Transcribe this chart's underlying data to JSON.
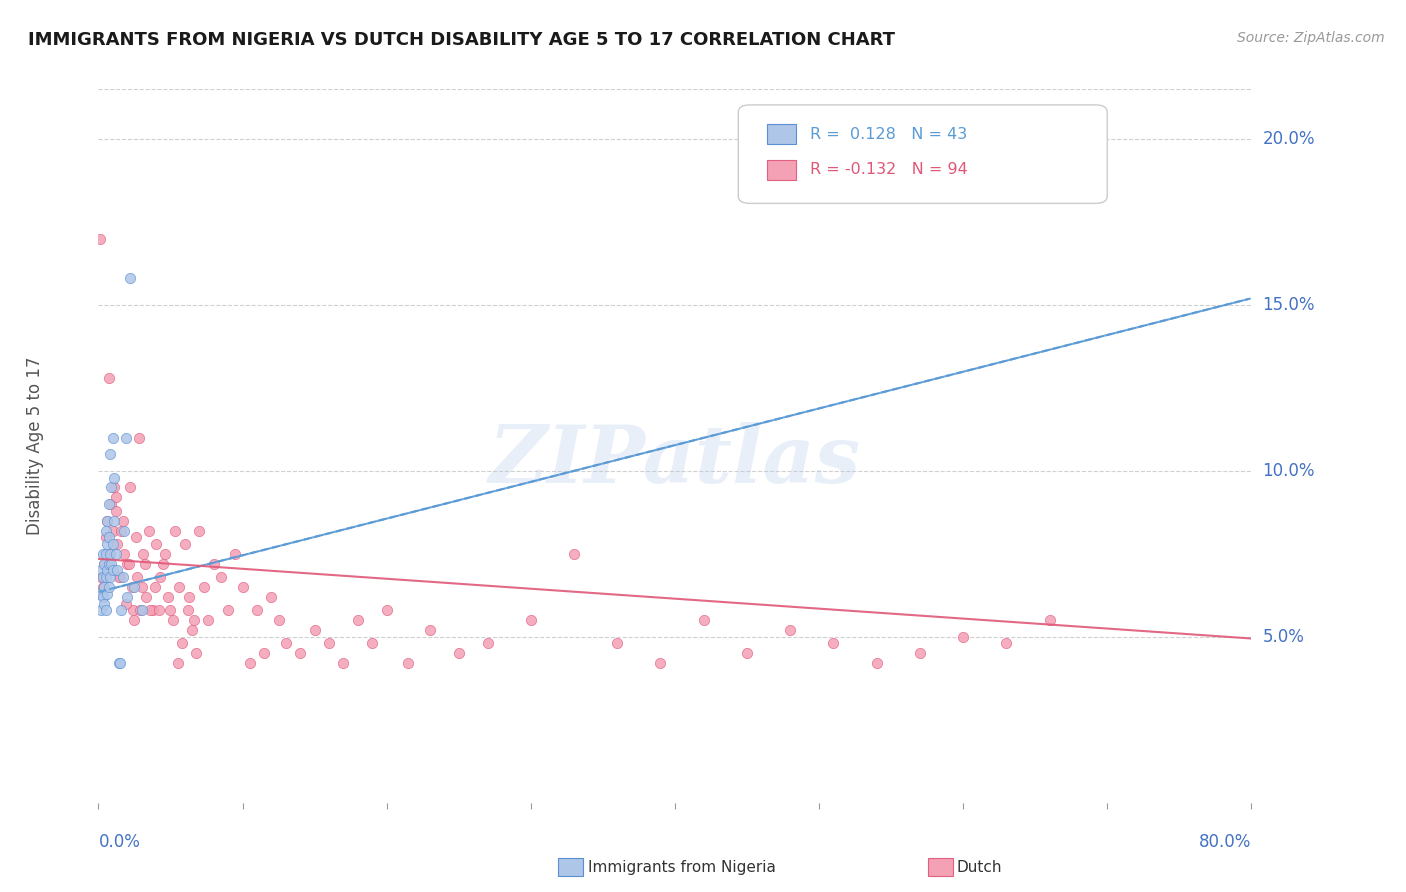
{
  "title": "IMMIGRANTS FROM NIGERIA VS DUTCH DISABILITY AGE 5 TO 17 CORRELATION CHART",
  "source": "Source: ZipAtlas.com",
  "ylabel": "Disability Age 5 to 17",
  "xmin": 0.0,
  "xmax": 0.8,
  "ymin": 0.0,
  "ymax": 0.215,
  "yticks": [
    0.05,
    0.1,
    0.15,
    0.2
  ],
  "ytick_labels": [
    "5.0%",
    "10.0%",
    "15.0%",
    "20.0%"
  ],
  "watermark_text": "ZIPatlas",
  "title_color": "#1a1a1a",
  "source_color": "#999999",
  "ylabel_color": "#555555",
  "tick_color": "#4472c4",
  "blue_scatter_color": "#aec6e8",
  "pink_scatter_color": "#f4a0b5",
  "blue_edge_color": "#5b8fd4",
  "pink_edge_color": "#e06080",
  "blue_line_color": "#5b9bd5",
  "pink_line_color": "#e05878",
  "grid_color": "#d0d0d0",
  "blue_points_x": [
    0.001,
    0.002,
    0.002,
    0.003,
    0.003,
    0.003,
    0.004,
    0.004,
    0.004,
    0.005,
    0.005,
    0.005,
    0.005,
    0.006,
    0.006,
    0.006,
    0.006,
    0.007,
    0.007,
    0.007,
    0.007,
    0.008,
    0.008,
    0.008,
    0.009,
    0.009,
    0.01,
    0.01,
    0.01,
    0.011,
    0.011,
    0.012,
    0.013,
    0.014,
    0.015,
    0.016,
    0.017,
    0.018,
    0.019,
    0.02,
    0.022,
    0.025,
    0.03
  ],
  "blue_points_y": [
    0.063,
    0.058,
    0.07,
    0.062,
    0.068,
    0.075,
    0.06,
    0.065,
    0.072,
    0.058,
    0.068,
    0.075,
    0.082,
    0.063,
    0.07,
    0.078,
    0.085,
    0.065,
    0.072,
    0.08,
    0.09,
    0.068,
    0.075,
    0.105,
    0.072,
    0.095,
    0.07,
    0.078,
    0.11,
    0.085,
    0.098,
    0.075,
    0.07,
    0.042,
    0.042,
    0.058,
    0.068,
    0.082,
    0.11,
    0.062,
    0.158,
    0.065,
    0.058
  ],
  "pink_points_x": [
    0.001,
    0.002,
    0.003,
    0.004,
    0.005,
    0.006,
    0.007,
    0.008,
    0.009,
    0.01,
    0.011,
    0.012,
    0.013,
    0.015,
    0.016,
    0.018,
    0.02,
    0.022,
    0.024,
    0.026,
    0.028,
    0.03,
    0.032,
    0.035,
    0.038,
    0.04,
    0.043,
    0.046,
    0.05,
    0.053,
    0.056,
    0.06,
    0.063,
    0.066,
    0.07,
    0.073,
    0.076,
    0.08,
    0.085,
    0.09,
    0.095,
    0.1,
    0.105,
    0.11,
    0.115,
    0.12,
    0.125,
    0.13,
    0.14,
    0.15,
    0.16,
    0.17,
    0.18,
    0.19,
    0.2,
    0.215,
    0.23,
    0.25,
    0.27,
    0.3,
    0.33,
    0.36,
    0.39,
    0.42,
    0.45,
    0.48,
    0.51,
    0.54,
    0.57,
    0.6,
    0.63,
    0.66,
    0.012,
    0.014,
    0.017,
    0.019,
    0.021,
    0.023,
    0.025,
    0.027,
    0.029,
    0.031,
    0.033,
    0.036,
    0.039,
    0.042,
    0.045,
    0.048,
    0.052,
    0.055,
    0.058,
    0.062,
    0.065,
    0.068
  ],
  "pink_points_y": [
    0.17,
    0.068,
    0.065,
    0.072,
    0.08,
    0.085,
    0.128,
    0.075,
    0.09,
    0.082,
    0.095,
    0.088,
    0.078,
    0.068,
    0.082,
    0.075,
    0.072,
    0.095,
    0.058,
    0.08,
    0.11,
    0.065,
    0.072,
    0.082,
    0.058,
    0.078,
    0.068,
    0.075,
    0.058,
    0.082,
    0.065,
    0.078,
    0.062,
    0.055,
    0.082,
    0.065,
    0.055,
    0.072,
    0.068,
    0.058,
    0.075,
    0.065,
    0.042,
    0.058,
    0.045,
    0.062,
    0.055,
    0.048,
    0.045,
    0.052,
    0.048,
    0.042,
    0.055,
    0.048,
    0.058,
    0.042,
    0.052,
    0.045,
    0.048,
    0.055,
    0.075,
    0.048,
    0.042,
    0.055,
    0.045,
    0.052,
    0.048,
    0.042,
    0.045,
    0.05,
    0.048,
    0.055,
    0.092,
    0.068,
    0.085,
    0.06,
    0.072,
    0.065,
    0.055,
    0.068,
    0.058,
    0.075,
    0.062,
    0.058,
    0.065,
    0.058,
    0.072,
    0.062,
    0.055,
    0.042,
    0.048,
    0.058,
    0.052,
    0.045
  ],
  "blue_line_x0": 0.0,
  "blue_line_x1": 0.8,
  "blue_line_y0": 0.0635,
  "blue_line_y1": 0.152,
  "pink_line_x0": 0.0,
  "pink_line_x1": 0.8,
  "pink_line_y0": 0.0735,
  "pink_line_y1": 0.0495
}
